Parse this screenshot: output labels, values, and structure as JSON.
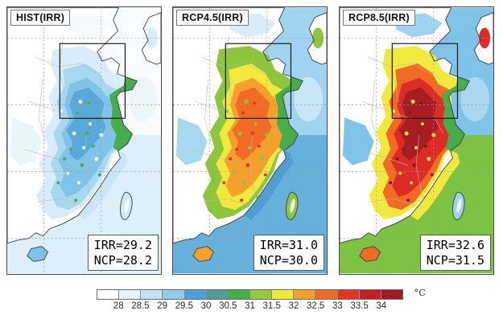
{
  "figure": {
    "panels": [
      {
        "title": "HIST(IRR)",
        "stats": {
          "irr": "IRR=29.2",
          "ncp": "NCP=28.2"
        },
        "theme": {
          "seaSouth": "#DDEFF9",
          "seaNorth": "#F8FCFE",
          "seaBand": "#C9E6F5",
          "seaPatch": "#EDF6FC",
          "land": "#FFFFFF",
          "korea": "#FFFFFF",
          "koreaPatch": "#D8EDF9",
          "westPatch": "#EAF5FB",
          "northPatch": "#F4FAFD",
          "zoneA": "#D8EDF9",
          "zoneB": "#A8D8F0",
          "zoneC": "#7FC3E8",
          "zoneD": "#58A8D8",
          "coastStrip": "#47AC4A",
          "speckLight": "#EFF8FD",
          "speckHot": "#47AC4A",
          "taiwan": "#CDE9F6",
          "hainan": "#7FC3E8"
        }
      },
      {
        "title": "RCP4.5(IRR)",
        "stats": {
          "irr": "IRR=31.0",
          "ncp": "NCP=30.0"
        },
        "theme": {
          "seaSouth": "#66B1DC",
          "seaNorth": "#9FD3EF",
          "seaBand": "#4F9FD3",
          "seaPatch": "#C8E6F5",
          "land": "#FFFFFF",
          "korea": "#FFFFFF",
          "koreaPatch": "#8CC63D",
          "westPatch": "#A8D8F0",
          "northPatch": "#D8EDF9",
          "zoneA": "#8CC63D",
          "zoneB": "#F2E93F",
          "zoneC": "#F6A02C",
          "zoneD": "#F26B24",
          "coastStrip": "#47AC4A",
          "speckLight": "#8CC63D",
          "speckHot": "#E23425",
          "taiwan": "#8CC63D",
          "hainan": "#F6A02C"
        }
      },
      {
        "title": "RCP8.5(IRR)",
        "stats": {
          "irr": "IRR=32.6",
          "ncp": "NCP=31.5"
        },
        "theme": {
          "seaSouth": "#7DC242",
          "seaNorth": "#7FC3E8",
          "seaBand": "#F2E93F",
          "seaPatch": "#A8D8F0",
          "land": "#FFFFFF",
          "korea": "#FFFFFF",
          "koreaPatch": "#DD2C25",
          "westPatch": "#7FC3E8",
          "northPatch": "#9FD3EF",
          "zoneA": "#F2E93F",
          "zoneB": "#F26B24",
          "zoneC": "#DD2C25",
          "zoneD": "#A81D22",
          "coastStrip": "#47AC4A",
          "speckLight": "#F2E93F",
          "speckHot": "#8E1419",
          "taiwan": "#9FD3EF",
          "hainan": "#F26B24"
        }
      }
    ],
    "colorbar": {
      "unit": "°C",
      "ticks": [
        "28",
        "28.5",
        "29",
        "29.5",
        "30",
        "30.5",
        "31",
        "31.5",
        "32",
        "32.5",
        "33",
        "33.5",
        "34"
      ],
      "colors": [
        "#FFFFFF",
        "#E9F2F7",
        "#C2E2F2",
        "#8FCBEA",
        "#4FA0D8",
        "#4E9C94",
        "#47AC4A",
        "#96C93D",
        "#F2E93F",
        "#F6A02C",
        "#F26B24",
        "#E23425",
        "#C32026",
        "#9E1B20"
      ]
    }
  },
  "chart_data": {
    "type": "heatmap",
    "subtype": "filled-contour temperature maps over eastern China, three scenario panels",
    "panels": [
      {
        "label": "HIST(IRR)",
        "IRR_mean_C": 29.2,
        "NCP_mean_C": 28.2
      },
      {
        "label": "RCP4.5(IRR)",
        "IRR_mean_C": 31.0,
        "NCP_mean_C": 30.0
      },
      {
        "label": "RCP8.5(IRR)",
        "IRR_mean_C": 32.6,
        "NCP_mean_C": 31.5
      }
    ],
    "colorbar": {
      "unit": "°C",
      "tick_values": [
        28,
        28.5,
        29,
        29.5,
        30,
        30.5,
        31,
        31.5,
        32,
        32.5,
        33,
        33.5,
        34
      ],
      "segment_colors": [
        "#FFFFFF",
        "#E9F2F7",
        "#C2E2F2",
        "#8FCBEA",
        "#4FA0D8",
        "#4E9C94",
        "#47AC4A",
        "#96C93D",
        "#F2E93F",
        "#F6A02C",
        "#F26B24",
        "#E23425",
        "#C32026",
        "#9E1B20"
      ],
      "bins": "14 color bins from <28 to >34"
    },
    "annotations": [
      "Black rectangle in each panel outlines the NCP study region"
    ],
    "legend_position": "bottom",
    "grid": "dashed graticule lines on each map"
  }
}
